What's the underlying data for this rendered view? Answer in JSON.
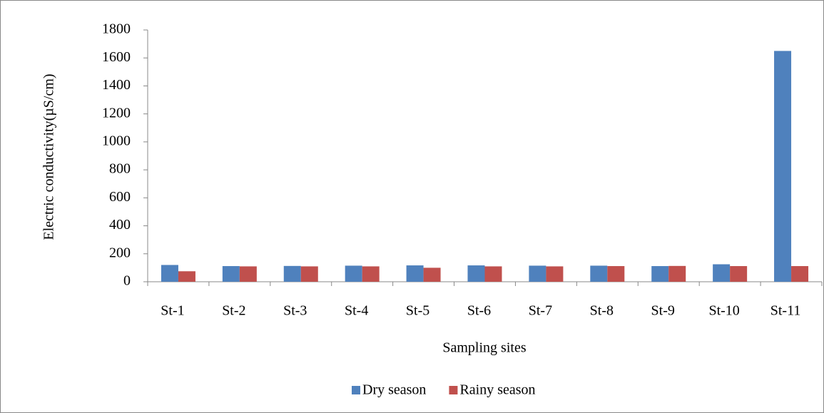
{
  "chart_data": {
    "type": "bar",
    "y_label": "Electric conductivity(µS/cm)",
    "x_label": "Sampling sites",
    "categories": [
      "St-1",
      "St-2",
      "St-3",
      "St-4",
      "St-5",
      "St-6",
      "St-7",
      "St-8",
      "St-9",
      "St-10",
      "St-11"
    ],
    "series": [
      {
        "name": "Dry season",
        "color": "#4f81bd",
        "values": [
          120,
          112,
          113,
          115,
          117,
          117,
          115,
          115,
          112,
          125,
          1650
        ]
      },
      {
        "name": "Rainy season",
        "color": "#c0504d",
        "values": [
          75,
          110,
          110,
          110,
          100,
          110,
          110,
          112,
          113,
          112,
          112
        ]
      }
    ],
    "ylim": [
      0,
      1800
    ],
    "yticks": [
      0,
      200,
      400,
      600,
      800,
      1000,
      1200,
      1400,
      1600,
      1800
    ],
    "grid": false,
    "legend": "bottom"
  }
}
